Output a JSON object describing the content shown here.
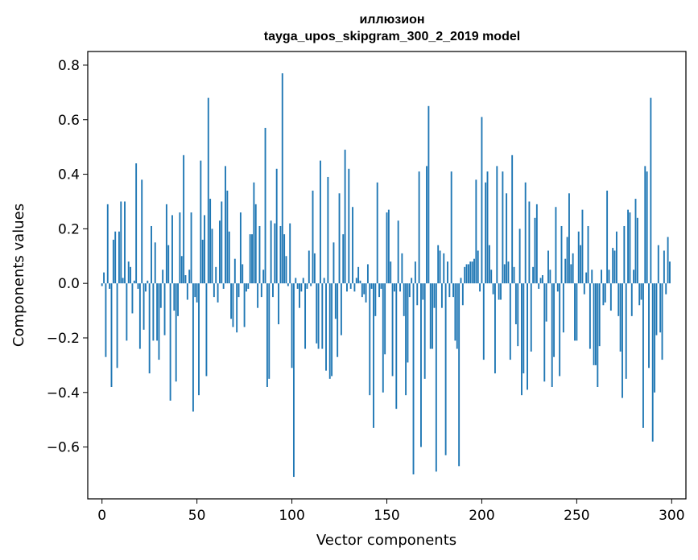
{
  "chart_data": {
    "type": "bar",
    "title_line1": "иллюзион",
    "title_line2": "tayga_upos_skipgram_300_2_2019 model",
    "xlabel": "Vector components",
    "ylabel": "Components values",
    "xlim": [
      -7.5,
      307.5
    ],
    "ylim": [
      -0.79,
      0.85
    ],
    "grid": false,
    "bar_color": "#1f77b4",
    "x_ticks": [
      {
        "value": 0,
        "label": "0"
      },
      {
        "value": 50,
        "label": "50"
      },
      {
        "value": 100,
        "label": "100"
      },
      {
        "value": 150,
        "label": "150"
      },
      {
        "value": 200,
        "label": "200"
      },
      {
        "value": 250,
        "label": "250"
      },
      {
        "value": 300,
        "label": "300"
      }
    ],
    "y_ticks": [
      {
        "value": -0.6,
        "label": "−0.6"
      },
      {
        "value": -0.4,
        "label": "−0.4"
      },
      {
        "value": -0.2,
        "label": "−0.2"
      },
      {
        "value": 0.0,
        "label": "0.0"
      },
      {
        "value": 0.2,
        "label": "0.2"
      },
      {
        "value": 0.4,
        "label": "0.4"
      },
      {
        "value": 0.6,
        "label": "0.6"
      },
      {
        "value": 0.8,
        "label": "0.8"
      }
    ],
    "values": [
      -0.01,
      0.04,
      -0.27,
      0.29,
      -0.02,
      -0.38,
      0.16,
      0.19,
      -0.31,
      0.19,
      0.3,
      0.02,
      0.3,
      -0.21,
      0.08,
      0.06,
      -0.11,
      0.01,
      0.44,
      -0.02,
      -0.24,
      0.38,
      -0.17,
      -0.03,
      0.01,
      -0.33,
      0.21,
      -0.21,
      0.15,
      -0.21,
      -0.28,
      -0.09,
      0.05,
      -0.19,
      0.29,
      0.14,
      -0.43,
      0.25,
      -0.1,
      -0.36,
      -0.12,
      0.26,
      0.1,
      0.47,
      0.03,
      -0.06,
      0.05,
      0.26,
      -0.47,
      -0.05,
      -0.07,
      -0.41,
      0.45,
      0.16,
      0.25,
      -0.34,
      0.68,
      0.31,
      0.2,
      -0.05,
      0.06,
      -0.07,
      0.23,
      0.3,
      -0.02,
      0.43,
      0.34,
      0.19,
      -0.13,
      -0.16,
      0.09,
      -0.18,
      -0.05,
      0.26,
      0.07,
      -0.16,
      -0.03,
      -0.02,
      0.18,
      0.18,
      0.37,
      0.29,
      -0.09,
      0.21,
      -0.05,
      0.05,
      0.57,
      -0.38,
      -0.35,
      0.23,
      -0.05,
      0.22,
      0.42,
      -0.15,
      0.21,
      0.77,
      0.18,
      0.1,
      -0.01,
      0.22,
      -0.31,
      -0.71,
      0.02,
      -0.02,
      -0.09,
      -0.03,
      0.02,
      -0.24,
      -0.02,
      0.12,
      -0.01,
      0.34,
      0.11,
      -0.22,
      -0.24,
      0.45,
      -0.24,
      0.02,
      -0.32,
      0.39,
      -0.35,
      -0.34,
      0.15,
      -0.13,
      -0.27,
      0.33,
      -0.19,
      0.18,
      0.49,
      -0.03,
      0.42,
      -0.02,
      0.28,
      -0.03,
      0.02,
      0.06,
      0.01,
      -0.05,
      -0.04,
      -0.07,
      0.07,
      -0.41,
      -0.02,
      -0.53,
      -0.12,
      0.37,
      -0.05,
      -0.02,
      -0.4,
      -0.26,
      0.26,
      0.27,
      0.08,
      -0.34,
      -0.03,
      -0.46,
      0.23,
      -0.03,
      0.11,
      -0.12,
      -0.41,
      -0.29,
      -0.05,
      0.02,
      -0.7,
      0.08,
      -0.08,
      0.41,
      -0.6,
      -0.06,
      -0.35,
      0.43,
      0.65,
      -0.24,
      -0.24,
      -0.09,
      -0.69,
      0.14,
      0.12,
      -0.09,
      0.11,
      -0.63,
      0.08,
      -0.05,
      0.41,
      -0.05,
      -0.21,
      -0.24,
      -0.67,
      0.02,
      -0.08,
      0.06,
      0.07,
      0.07,
      0.08,
      0.08,
      0.09,
      0.38,
      0.12,
      -0.03,
      0.61,
      -0.28,
      0.37,
      0.41,
      0.14,
      0.05,
      -0.04,
      -0.33,
      0.43,
      -0.06,
      -0.06,
      0.41,
      0.07,
      0.33,
      0.08,
      -0.28,
      0.47,
      0.06,
      -0.15,
      -0.23,
      0.2,
      -0.41,
      -0.33,
      0.37,
      -0.39,
      0.3,
      -0.25,
      0.06,
      0.24,
      0.29,
      -0.02,
      0.02,
      0.03,
      -0.36,
      -0.14,
      0.12,
      0.05,
      -0.38,
      -0.27,
      0.28,
      -0.03,
      -0.34,
      0.21,
      -0.18,
      0.09,
      0.17,
      0.33,
      0.07,
      0.11,
      -0.21,
      -0.21,
      0.19,
      0.14,
      0.27,
      -0.04,
      0.04,
      0.21,
      -0.24,
      0.05,
      -0.3,
      -0.3,
      -0.38,
      -0.23,
      0.05,
      -0.08,
      -0.07,
      0.34,
      0.05,
      -0.1,
      0.13,
      0.12,
      0.19,
      -0.12,
      -0.25,
      -0.42,
      0.21,
      -0.35,
      0.27,
      0.26,
      -0.12,
      0.05,
      0.31,
      0.24,
      -0.08,
      -0.06,
      -0.53,
      0.43,
      0.41,
      -0.31,
      0.68,
      -0.58,
      -0.4,
      -0.19,
      0.14,
      -0.18,
      -0.28,
      0.12,
      -0.04,
      0.17,
      0.08
    ]
  }
}
